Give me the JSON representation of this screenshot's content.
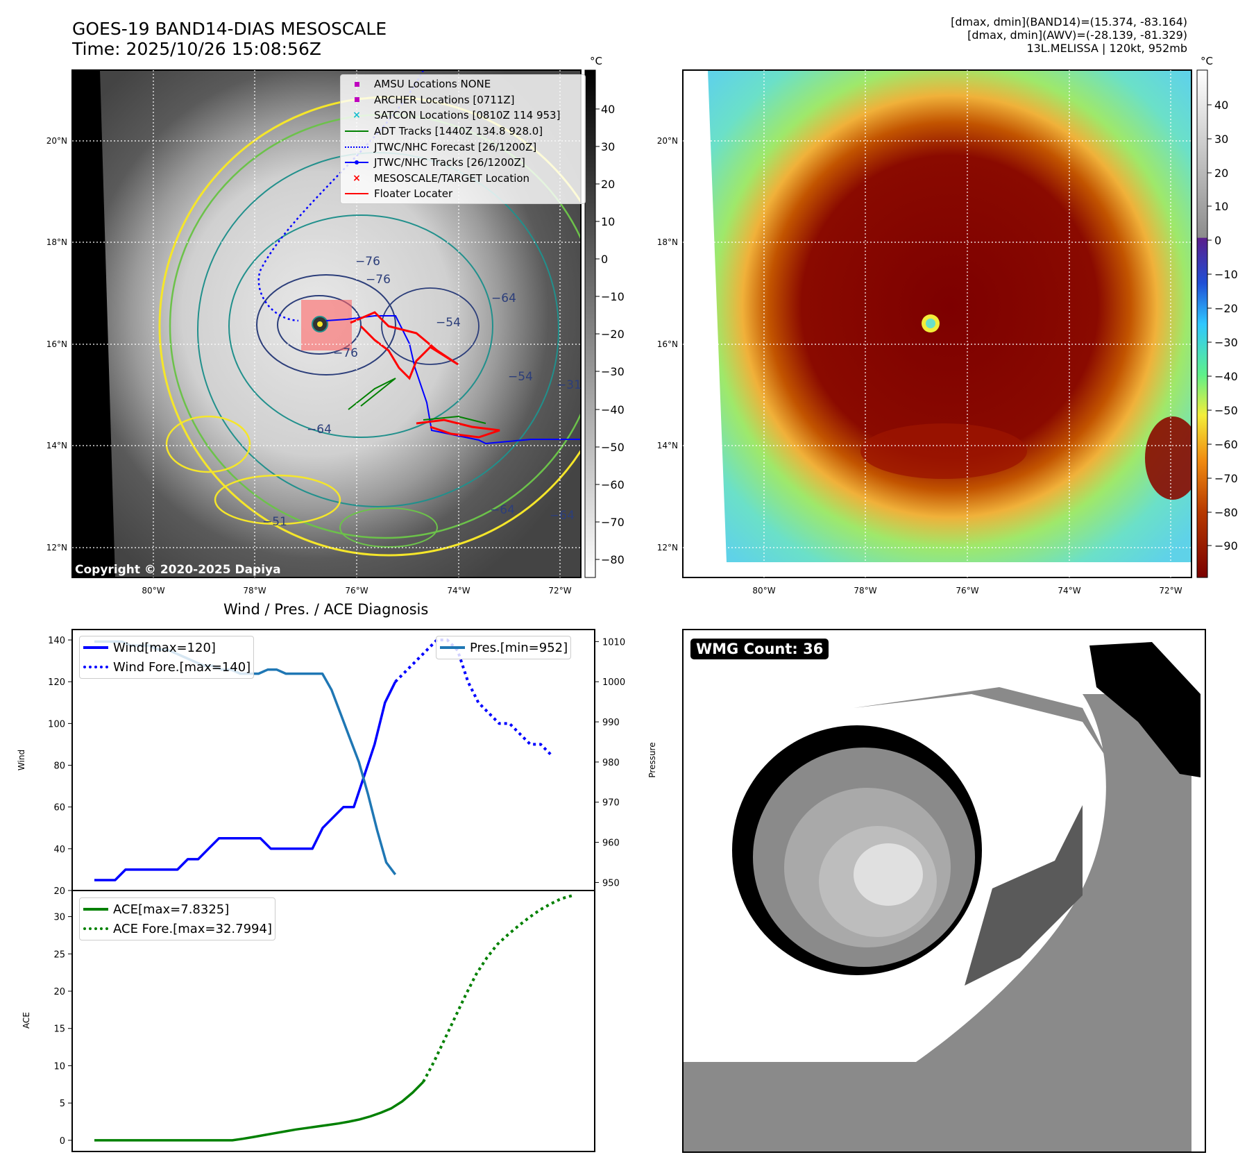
{
  "header": {
    "title_line1": "GOES-19 BAND14-DIAS MESOSCALE",
    "title_line2": "Time: 2025/10/26 15:08:56Z",
    "info_line1": "[dmax, dmin](BAND14)=(15.374, -83.164)",
    "info_line2": "[dmax, dmin](AWV)=(-28.139, -81.329)",
    "info_line3": "13L.MELISSA | 120kt, 952mb"
  },
  "copyright": "Copyright © 2020-2025 Dapiya",
  "map_legend": [
    {
      "label": "AMSU Locations NONE",
      "marker": "square",
      "color": "#bf00bf"
    },
    {
      "label": "ARCHER Locations [0711Z]",
      "marker": "square",
      "color": "#bf00bf"
    },
    {
      "label": "SATCON Locations [0810Z 114 953]",
      "marker": "x",
      "color": "#17becf"
    },
    {
      "label": "ADT Tracks [1440Z 134.8 928.0]",
      "marker": "line",
      "color": "#008000"
    },
    {
      "label": "JTWC/NHC Forecast [26/1200Z]",
      "marker": "dotted",
      "color": "#0000ff"
    },
    {
      "label": "JTWC/NHC Tracks [26/1200Z]",
      "marker": "line-dot",
      "color": "#0000ff"
    },
    {
      "label": "MESOSCALE/TARGET Location",
      "marker": "x",
      "color": "#ff0000"
    },
    {
      "label": "Floater Locater",
      "marker": "line",
      "color": "#ff0000"
    }
  ],
  "map_axes": {
    "lat_ticks": [
      "20°N",
      "18°N",
      "16°N",
      "14°N",
      "12°N"
    ],
    "lon_ticks": [
      "80°W",
      "78°W",
      "76°W",
      "74°W",
      "72°W"
    ]
  },
  "contour_labels": [
    "−76",
    "−64",
    "−76",
    "−54",
    "−64",
    "−64",
    "−76",
    "−31",
    "−51",
    "−64",
    "−54"
  ],
  "colorbar_gray": {
    "unit": "°C",
    "ticks": [
      "40",
      "30",
      "20",
      "10",
      "0",
      "−10",
      "−20",
      "−30",
      "−40",
      "−50",
      "−60",
      "−70",
      "−80"
    ]
  },
  "colorbar_color": {
    "unit": "°C",
    "ticks": [
      "40",
      "30",
      "20",
      "10",
      "0",
      "−10",
      "−20",
      "−30",
      "−40",
      "−50",
      "−60",
      "−70",
      "−80",
      "−90"
    ]
  },
  "wmg": {
    "label": "WMG Count: 36"
  },
  "colors": {
    "wind": "#0000ff",
    "pressure": "#1f77b4",
    "ace": "#008000",
    "contour_yellow": "#f5e62a",
    "contour_green": "#6cc24a",
    "contour_teal": "#21908c",
    "contour_navy": "#2c3e7a"
  },
  "chart_data": [
    {
      "type": "line",
      "title": "Wind / Pres. / ACE Diagnosis",
      "ylabel": "Wind",
      "ylabel_right": "Pressure",
      "ylim": [
        20,
        145
      ],
      "ylim_right": [
        948,
        1013
      ],
      "yticks": [
        "140",
        "120",
        "100",
        "80",
        "60",
        "40",
        "20"
      ],
      "yticks_right": [
        "1010",
        "1000",
        "990",
        "980",
        "970",
        "960",
        "950"
      ],
      "series": [
        {
          "name": "Wind[max=120]",
          "style": "solid",
          "axis": "left",
          "values": [
            25,
            25,
            25,
            30,
            30,
            30,
            30,
            30,
            30,
            35,
            35,
            40,
            45,
            45,
            45,
            45,
            45,
            40,
            40,
            40,
            40,
            40,
            50,
            55,
            60,
            60,
            75,
            90,
            110,
            120
          ]
        },
        {
          "name": "Wind Fore.[max=140]",
          "style": "dotted",
          "axis": "left",
          "start_index": 29,
          "values": [
            120,
            125,
            130,
            135,
            140,
            140,
            135,
            120,
            110,
            105,
            100,
            100,
            95,
            90,
            90,
            85
          ]
        },
        {
          "name": "Pres.[min=952]",
          "style": "solid",
          "axis": "right",
          "values": [
            1010,
            1010,
            1010,
            1010,
            1009,
            1009,
            1009,
            1008,
            1008,
            1007,
            1006,
            1005,
            1004,
            1004,
            1003,
            1003,
            1002,
            1002,
            1002,
            1003,
            1003,
            1002,
            1002,
            1002,
            1002,
            1002,
            998,
            992,
            986,
            980,
            972,
            963,
            955,
            952
          ]
        }
      ]
    },
    {
      "type": "line",
      "ylabel": "ACE",
      "ylim": [
        -1.5,
        33.5
      ],
      "yticks": [
        "30",
        "25",
        "20",
        "15",
        "10",
        "5",
        "0"
      ],
      "series": [
        {
          "name": "ACE[max=7.8325]",
          "style": "solid",
          "values": [
            0,
            0,
            0,
            0,
            0,
            0,
            0,
            0,
            0,
            0,
            0,
            0,
            0,
            0,
            0.2,
            0.45,
            0.7,
            0.95,
            1.2,
            1.45,
            1.65,
            1.85,
            2.05,
            2.25,
            2.5,
            2.8,
            3.2,
            3.7,
            4.3,
            5.2,
            6.4,
            7.8325
          ]
        },
        {
          "name": "ACE Fore.[max=32.7994]",
          "style": "dotted",
          "start_index": 31,
          "values": [
            7.8325,
            10.5,
            13.5,
            16.5,
            19.5,
            22.3,
            24.5,
            26.3,
            27.6,
            28.8,
            29.9,
            30.9,
            31.7,
            32.4,
            32.7994
          ]
        }
      ]
    }
  ]
}
